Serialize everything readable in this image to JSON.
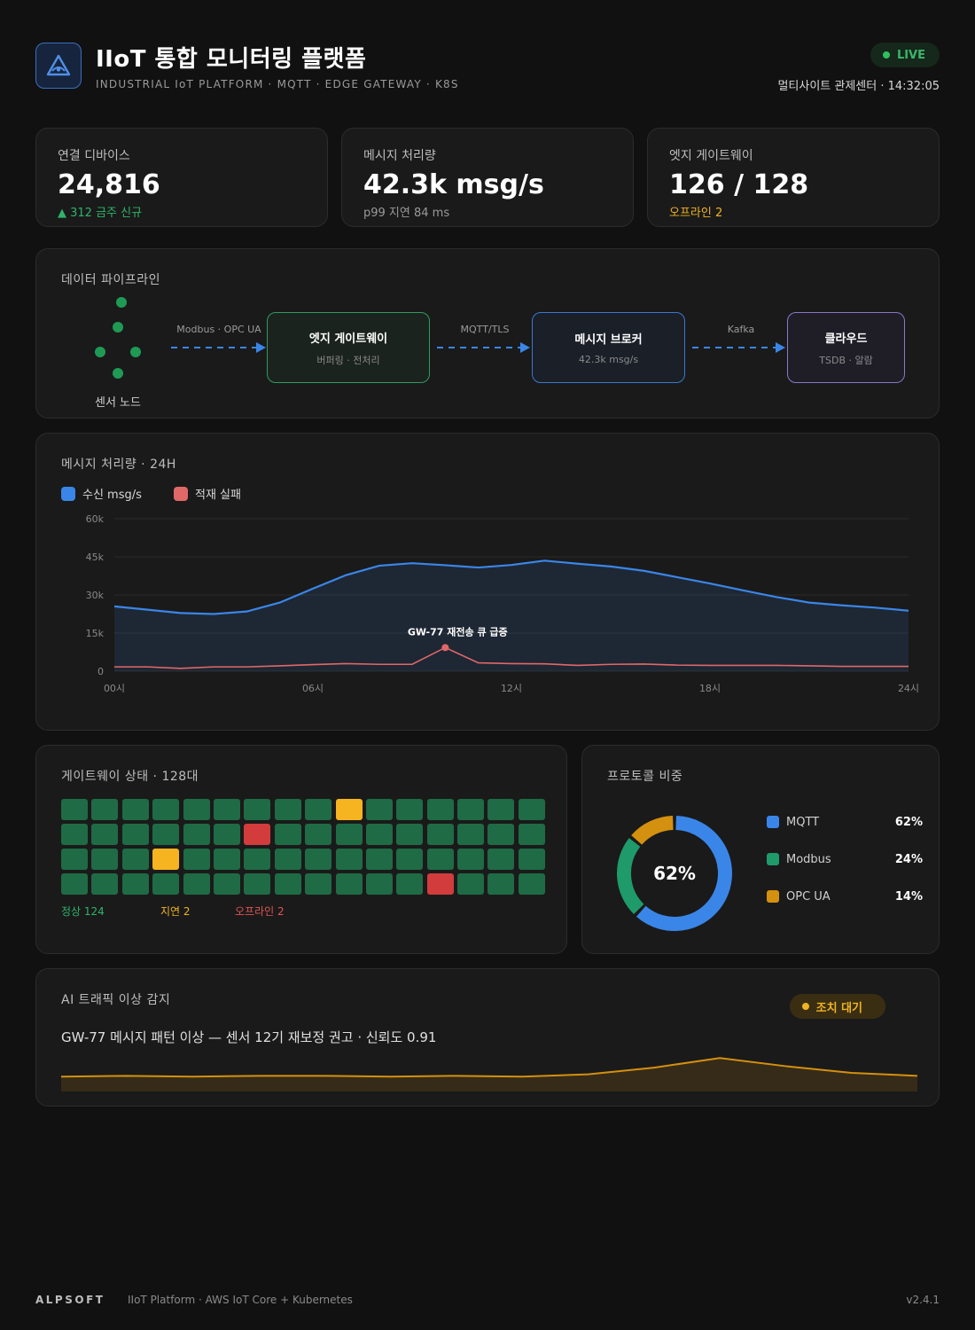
{
  "header": {
    "title": "IIoT 통합 모니터링 플랫폼",
    "subtitle": "INDUSTRIAL IoT PLATFORM · MQTT · EDGE GATEWAY · K8S",
    "live": "LIVE",
    "meta": "멀티사이트 관제센터 · 14:32:05",
    "logo_icon": "triangle-eye-icon"
  },
  "kpis": [
    {
      "label": "연결 디바이스",
      "value": "24,816",
      "sub": "▲ 312 금주 신규",
      "sub_color": "#2fb36a"
    },
    {
      "label": "메시지 처리량",
      "value": "42.3k msg/s",
      "sub": "p99 지연 84 ms",
      "sub_color": "#9a9a9a"
    },
    {
      "label": "엣지 게이트웨이",
      "value": "126 / 128",
      "sub": "오프라인 2",
      "sub_color": "#f0b323"
    }
  ],
  "pipeline": {
    "title": "데이터 파이프라인",
    "sensor_label": "센서 노드",
    "links": [
      "Modbus · OPC UA",
      "MQTT/TLS",
      "Kafka"
    ],
    "nodes": [
      {
        "name": "엣지 게이트웨이",
        "desc": "버퍼링 · 전처리",
        "color": "#2f9a5f"
      },
      {
        "name": "메시지 브로커",
        "desc": "42.3k msg/s",
        "color": "#3a78d0"
      },
      {
        "name": "클라우드",
        "desc": "TSDB · 알람",
        "color": "#8a78c8"
      }
    ]
  },
  "throughput": {
    "title": "메시지 처리량 · 24H",
    "annotation": "GW-77 재전송 큐 급증",
    "chart_data": {
      "type": "area",
      "x": [
        0,
        1,
        2,
        3,
        4,
        5,
        6,
        7,
        8,
        9,
        10,
        11,
        12,
        13,
        14,
        15,
        16,
        17,
        18,
        19,
        20,
        21,
        22,
        23,
        24
      ],
      "xticks": [
        "00시",
        "06시",
        "12시",
        "18시",
        "24시"
      ],
      "xtick_values": [
        0,
        6,
        12,
        18,
        24
      ],
      "yticks": [
        "60k",
        "45k",
        "30k",
        "15k",
        "0"
      ],
      "ylim": [
        0,
        60000
      ],
      "series": [
        {
          "name": "수신 msg/s",
          "color": "#3a86e8",
          "values": [
            25500,
            24200,
            22900,
            22500,
            23500,
            27000,
            32500,
            37800,
            41500,
            42500,
            41700,
            40800,
            41800,
            43500,
            42300,
            41200,
            39500,
            37000,
            34500,
            31800,
            29200,
            27000,
            25900,
            25000,
            23800
          ]
        },
        {
          "name": "적재 실패",
          "color": "#e06868",
          "values": [
            1700,
            1700,
            1100,
            1700,
            1700,
            2100,
            2600,
            3000,
            2700,
            2700,
            9300,
            3300,
            3000,
            2900,
            2300,
            2700,
            2800,
            2400,
            2300,
            2300,
            2300,
            2100,
            1900,
            1900,
            1900
          ]
        }
      ],
      "annotation_x": 10.4
    }
  },
  "gateways": {
    "title": "게이트웨이 상태 · 128대",
    "legend": [
      {
        "label": "정상 124",
        "color": "#2fb36a"
      },
      {
        "label": "지연 2",
        "color": "#f0b323"
      },
      {
        "label": "오프라인 2",
        "color": "#e05555"
      }
    ],
    "status_colors": {
      "ok": "#1f6b45",
      "warn": "#f5b420",
      "off": "#d23c3c"
    },
    "cells": [
      "ok",
      "ok",
      "ok",
      "ok",
      "ok",
      "ok",
      "ok",
      "ok",
      "ok",
      "warn",
      "ok",
      "ok",
      "ok",
      "ok",
      "ok",
      "ok",
      "ok",
      "ok",
      "ok",
      "ok",
      "ok",
      "ok",
      "off",
      "ok",
      "ok",
      "ok",
      "ok",
      "ok",
      "ok",
      "ok",
      "ok",
      "ok",
      "ok",
      "ok",
      "ok",
      "warn",
      "ok",
      "ok",
      "ok",
      "ok",
      "ok",
      "ok",
      "ok",
      "ok",
      "ok",
      "ok",
      "ok",
      "ok",
      "ok",
      "ok",
      "ok",
      "ok",
      "ok",
      "ok",
      "ok",
      "ok",
      "ok",
      "ok",
      "ok",
      "ok",
      "off",
      "ok",
      "ok",
      "ok"
    ]
  },
  "protocols": {
    "title": "프로토콜 비중",
    "center": "62%",
    "chart_data": {
      "type": "pie",
      "labels": [
        "MQTT",
        "Modbus",
        "OPC UA"
      ],
      "values": [
        62,
        24,
        14
      ],
      "colors": [
        "#3a86e8",
        "#1f9a6a",
        "#d4900f"
      ]
    },
    "items": [
      {
        "name": "MQTT",
        "pct": "62%",
        "color": "#3a86e8"
      },
      {
        "name": "Modbus",
        "pct": "24%",
        "color": "#1f9a6a"
      },
      {
        "name": "OPC UA",
        "pct": "14%",
        "color": "#d4900f"
      }
    ]
  },
  "ai": {
    "title": "AI 트래픽 이상 감지",
    "badge": "조치 대기",
    "text": "GW-77 메시지 패턴 이상 — 센서 12기 재보정 권고 · 신뢰도 0.91",
    "chart_data": {
      "type": "area",
      "x": [
        0,
        1,
        2,
        3,
        4,
        5,
        6,
        7,
        8,
        9,
        10,
        11,
        12,
        13
      ],
      "values": [
        0.2,
        0.21,
        0.2,
        0.21,
        0.21,
        0.2,
        0.21,
        0.2,
        0.23,
        0.32,
        0.45,
        0.34,
        0.25,
        0.21
      ],
      "color": "#d4900f"
    }
  },
  "footer": {
    "brand": "ALPSOFT",
    "text": "IIoT Platform · AWS IoT Core + Kubernetes",
    "version": "v2.4.1"
  }
}
